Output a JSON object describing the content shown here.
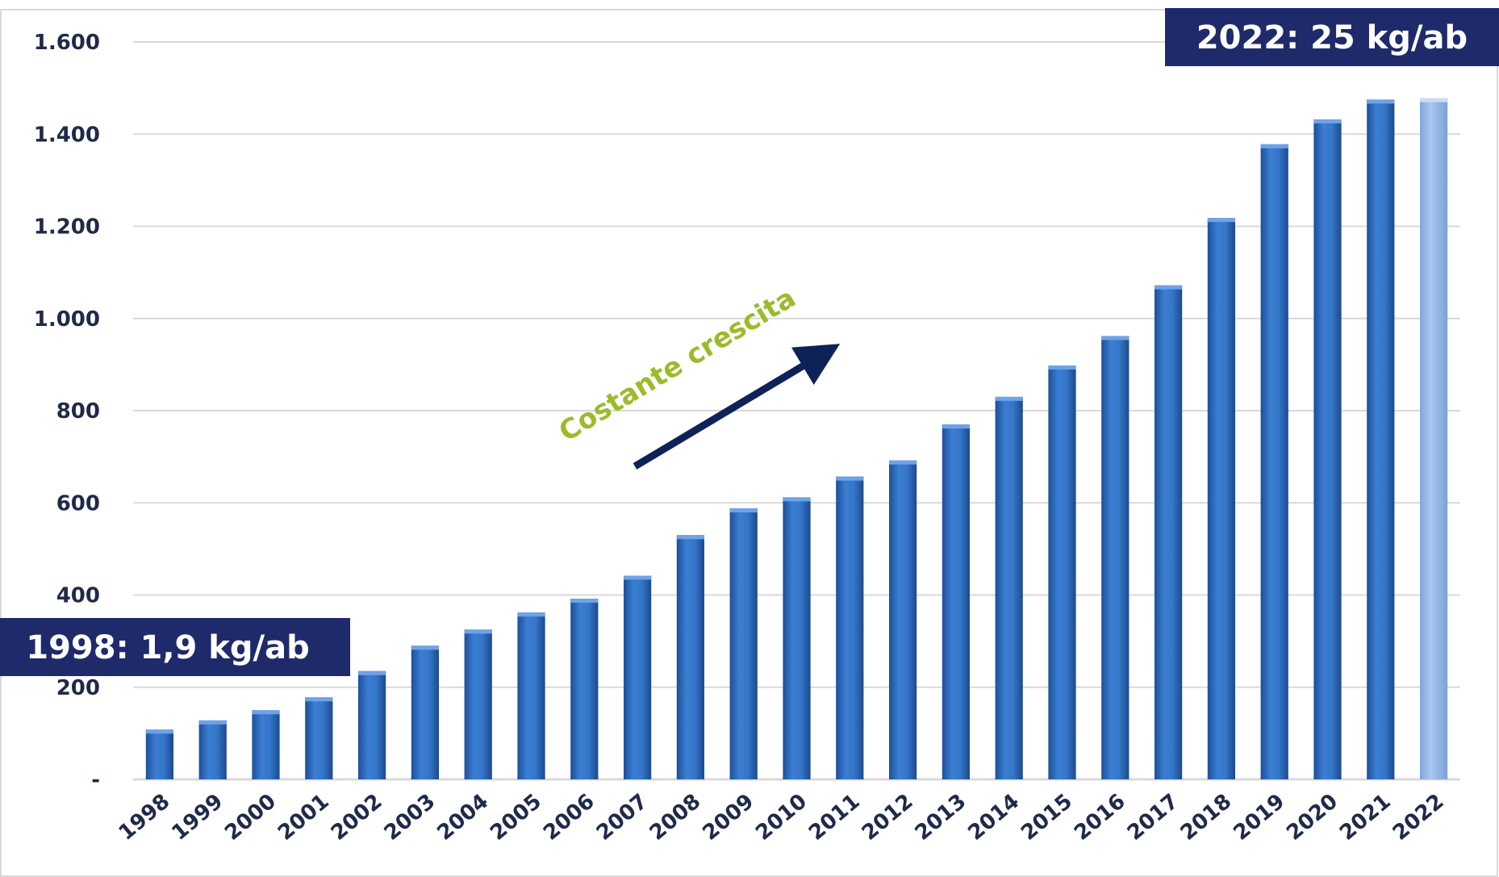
{
  "chart_data": {
    "type": "bar",
    "categories": [
      "1998",
      "1999",
      "2000",
      "2001",
      "2002",
      "2003",
      "2004",
      "2005",
      "2006",
      "2007",
      "2008",
      "2009",
      "2010",
      "2011",
      "2012",
      "2013",
      "2014",
      "2015",
      "2016",
      "2017",
      "2018",
      "2019",
      "2020",
      "2021",
      "2022"
    ],
    "values": [
      108,
      128,
      150,
      178,
      235,
      290,
      325,
      362,
      392,
      442,
      530,
      588,
      612,
      657,
      692,
      770,
      830,
      898,
      962,
      1072,
      1218,
      1378,
      1432,
      1475,
      1478
    ],
    "highlight_category": "2022",
    "ylim": [
      0,
      1600
    ],
    "yticks": [
      0,
      200,
      400,
      600,
      800,
      1000,
      1200,
      1400,
      1600
    ],
    "ytick_labels": [
      "-",
      "200",
      "400",
      "600",
      "800",
      "1.000",
      "1.200",
      "1.400",
      "1.600"
    ],
    "grid": true,
    "colors": {
      "bar": "#2f6cc0",
      "bar_highlight": "#8fb4e3",
      "grid": "#d9d9d9",
      "tick_text": "#1f2a4a",
      "callout_bg": "#1f2a6b",
      "callout_text": "#ffffff",
      "arrow": "#0f2257",
      "trend_text": "#9bbb2a"
    },
    "annotations": {
      "start": "1998: 1,9 kg/ab",
      "end": "2022: 25 kg/ab",
      "trend": "Costante crescita"
    }
  }
}
